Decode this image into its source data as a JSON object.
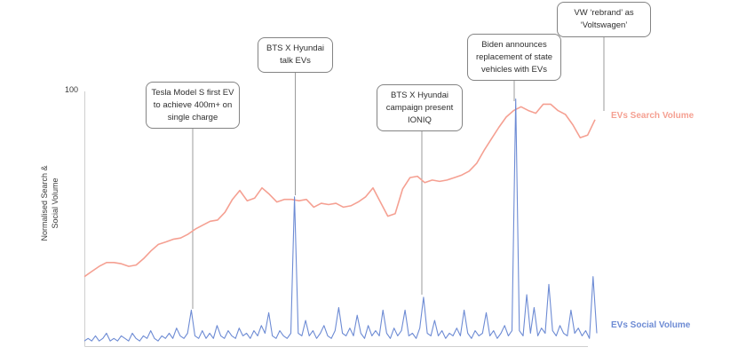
{
  "chart_data": {
    "type": "line",
    "title": "",
    "ylabel": "Normalised Search &\nSocial Volume",
    "ytick_top": "100",
    "ylim": [
      0,
      100
    ],
    "grid": false,
    "legend_position": "right-of-lines",
    "series": [
      {
        "name": "EVs Search Volume",
        "color": "#F5A092",
        "values": [
          27,
          29,
          31,
          32.5,
          32.5,
          32,
          31,
          31.5,
          34,
          37,
          39.5,
          40.5,
          41.5,
          42,
          43.5,
          45.5,
          47,
          48.5,
          49,
          52,
          57,
          60.5,
          56.5,
          57.5,
          61.5,
          59,
          56,
          57,
          57,
          56.5,
          57,
          54,
          55.5,
          55,
          55.5,
          54,
          54.5,
          56,
          58,
          61.5,
          56,
          50.5,
          51.5,
          61,
          65.5,
          66,
          63.5,
          64.5,
          64,
          64.5,
          65.5,
          66.5,
          68,
          71,
          76,
          80.5,
          85,
          89,
          91.5,
          93,
          91.5,
          90.5,
          94,
          94,
          91.5,
          90,
          86,
          81,
          82,
          88
        ]
      },
      {
        "name": "EVs Social Volume",
        "color": "#6D8BD4",
        "values": [
          2,
          3,
          2,
          4,
          2,
          3,
          5,
          2,
          3,
          2,
          4,
          3,
          2,
          5,
          3,
          2,
          4,
          3,
          6,
          3,
          2,
          4,
          3,
          5,
          3,
          7,
          4,
          3,
          5,
          14,
          4,
          3,
          6,
          3,
          5,
          3,
          8,
          4,
          3,
          6,
          4,
          3,
          7,
          4,
          5,
          3,
          6,
          4,
          8,
          5,
          13,
          4,
          3,
          6,
          4,
          3,
          5,
          58,
          5,
          4,
          10,
          4,
          6,
          3,
          5,
          8,
          4,
          3,
          6,
          15,
          5,
          4,
          7,
          4,
          12,
          5,
          3,
          8,
          4,
          6,
          4,
          14,
          5,
          3,
          7,
          4,
          6,
          14,
          4,
          5,
          3,
          7,
          19,
          5,
          4,
          10,
          4,
          6,
          3,
          5,
          4,
          7,
          4,
          14,
          5,
          3,
          6,
          4,
          5,
          13,
          4,
          6,
          3,
          5,
          8,
          4,
          6,
          96,
          6,
          4,
          20,
          5,
          15,
          4,
          7,
          5,
          24,
          6,
          4,
          8,
          5,
          4,
          14,
          5,
          7,
          4,
          6,
          3,
          27,
          5
        ]
      }
    ],
    "annotations": [
      {
        "text": "Tesla Model S first EV\nto achieve 400m+ on\nsingle charge"
      },
      {
        "text": "BTS X Hyundai\ntalk EVs"
      },
      {
        "text": "BTS X Hyundai\ncampaign present\nIONIQ"
      },
      {
        "text": "Biden announces\nreplacement of state\nvehicles with EVs"
      },
      {
        "text": "VW ‘rebrand’ as\n‘Voltswagen’"
      }
    ]
  },
  "colors": {
    "axis": "#cfcfcf",
    "leader_line": "#9b9b9b",
    "text": "#3b3b3b"
  }
}
